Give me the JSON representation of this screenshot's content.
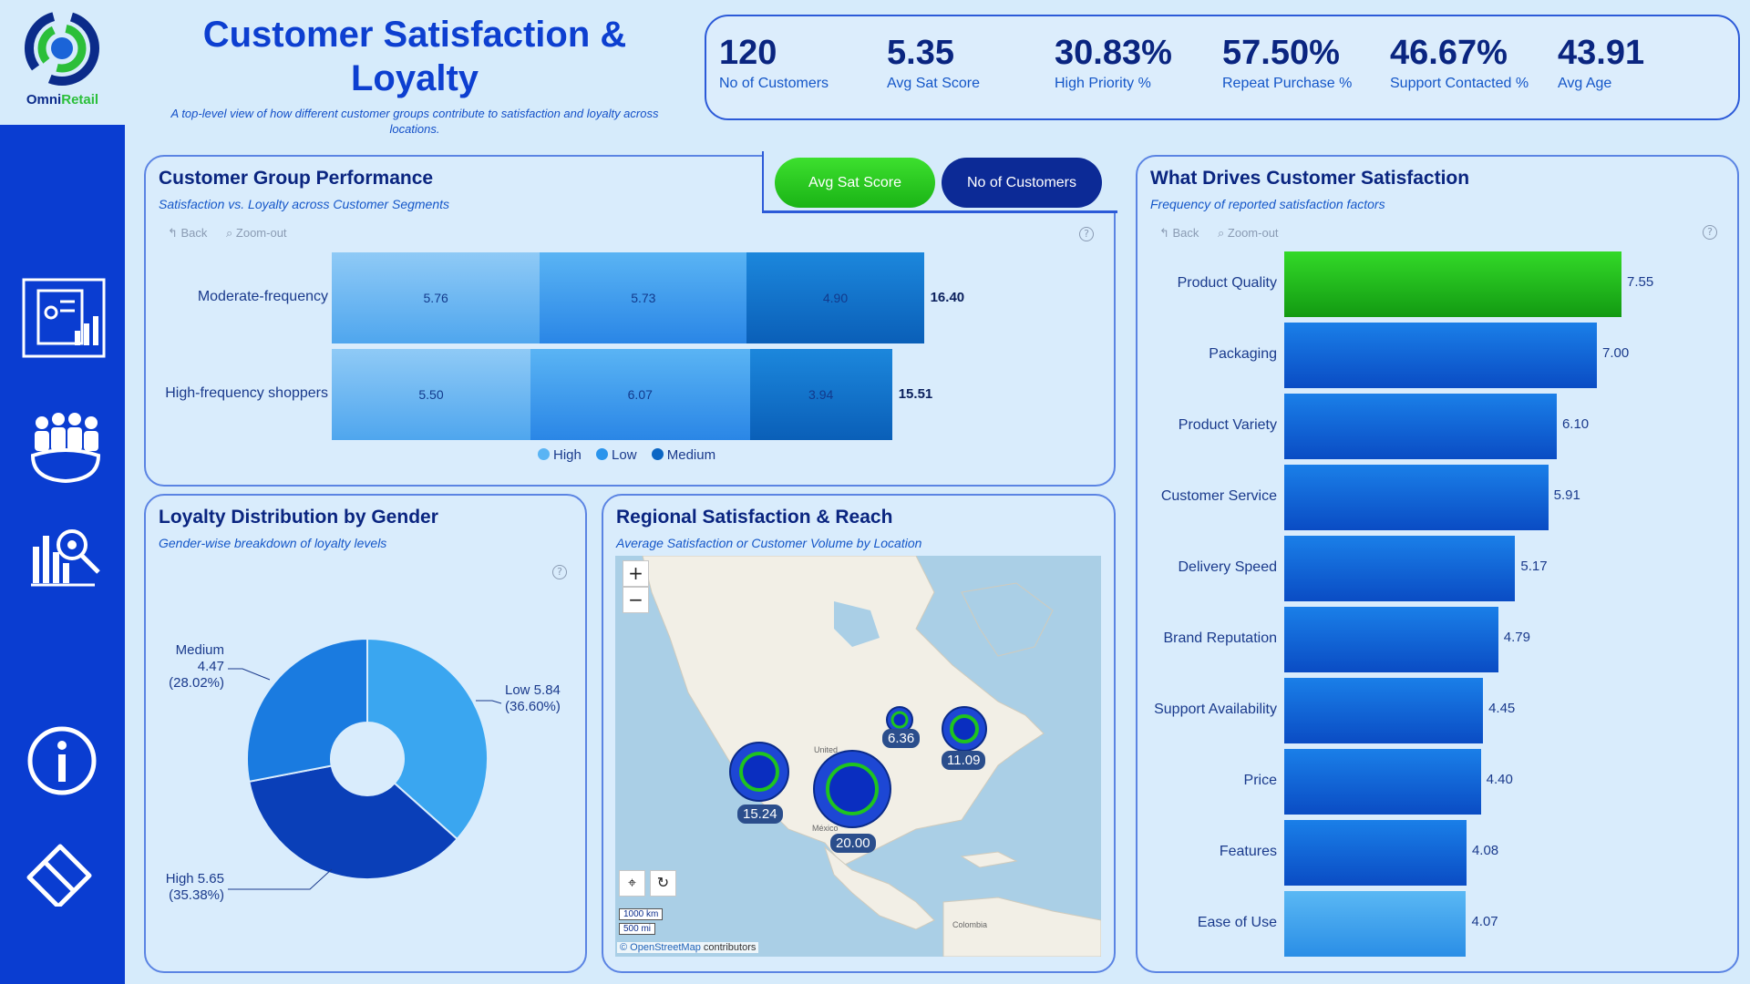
{
  "brand": {
    "name_part1": "Omni",
    "name_part2": "Retail"
  },
  "header": {
    "title": "Customer Satisfaction & Loyalty",
    "subtitle": "A top-level view of how different customer groups contribute to satisfaction and loyalty across locations."
  },
  "kpis": [
    {
      "value": "120",
      "label": "No of Customers"
    },
    {
      "value": "5.35",
      "label": "Avg Sat Score"
    },
    {
      "value": "30.83%",
      "label": "High Priority %"
    },
    {
      "value": "57.50%",
      "label": "Repeat Purchase %"
    },
    {
      "value": "46.67%",
      "label": "Support Contacted %"
    },
    {
      "value": "43.91",
      "label": "Avg Age"
    }
  ],
  "nav": [
    "dashboard-icon",
    "customers-icon",
    "analytics-icon",
    "info-icon",
    "eraser-icon"
  ],
  "colors": {
    "accent_green": "#1fc41f",
    "primary_blue": "#0a3dd1",
    "navy": "#0c2a96"
  },
  "group_perf": {
    "title": "Customer Group Performance",
    "subtitle": "Satisfaction vs. Loyalty across Customer Segments",
    "back": "Back",
    "zoom": "Zoom-out",
    "toggle_sat": "Avg Sat Score",
    "toggle_cust": "No of Customers",
    "legend": [
      "High",
      "Low",
      "Medium"
    ]
  },
  "gender": {
    "title": "Loyalty Distribution by Gender",
    "subtitle": "Gender-wise breakdown of loyalty levels",
    "labels": {
      "low": [
        "Low 5.84",
        "(36.60%)"
      ],
      "medium": [
        "Medium",
        "4.47",
        "(28.02%)"
      ],
      "high": [
        "High 5.65",
        "(35.38%)"
      ]
    }
  },
  "region": {
    "title": "Regional Satisfaction & Reach",
    "subtitle": "Average Satisfaction or Customer Volume by Location",
    "zoom_in": "+",
    "zoom_out": "−",
    "scale_km": "1000 km",
    "scale_mi": "500 mi",
    "attribution_link": "© OpenStreetMap",
    "attribution_rest": " contributors",
    "place_united": "United",
    "place_mexico": "México",
    "place_colombia": "Colombia",
    "bubbles": [
      "15.24",
      "20.00",
      "6.36",
      "11.09"
    ]
  },
  "drivers": {
    "title": "What Drives Customer Satisfaction",
    "subtitle": "Frequency of reported satisfaction factors",
    "back": "Back",
    "zoom": "Zoom-out"
  },
  "chart_data": [
    {
      "type": "bar",
      "orientation": "horizontal",
      "stacked": true,
      "title": "Customer Group Performance",
      "categories": [
        "Moderate-frequency",
        "High-frequency shoppers"
      ],
      "series": [
        {
          "name": "High",
          "values": [
            5.76,
            5.5
          ]
        },
        {
          "name": "Low",
          "values": [
            5.73,
            6.07
          ]
        },
        {
          "name": "Medium",
          "values": [
            4.9,
            3.94
          ]
        }
      ],
      "totals": [
        "16.40",
        "15.51"
      ],
      "legend": "bottom-center"
    },
    {
      "type": "pie",
      "donut": true,
      "title": "Loyalty Distribution by Gender",
      "categories": [
        "Low",
        "High",
        "Medium"
      ],
      "values": [
        5.84,
        5.65,
        4.47
      ],
      "percents": [
        "36.60%",
        "35.38%",
        "28.02%"
      ]
    },
    {
      "type": "bar",
      "orientation": "horizontal",
      "title": "What Drives Customer Satisfaction",
      "categories": [
        "Product Quality",
        "Packaging",
        "Product Variety",
        "Customer Service",
        "Delivery Speed",
        "Brand Reputation",
        "Support Availability",
        "Price",
        "Features",
        "Ease of Use"
      ],
      "values": [
        7.55,
        7.0,
        6.1,
        5.91,
        5.17,
        4.79,
        4.45,
        4.4,
        4.08,
        4.07
      ],
      "value_labels": [
        "7.55",
        "7.00",
        "6.10",
        "5.91",
        "5.17",
        "4.79",
        "4.45",
        "4.40",
        "4.08",
        "4.07"
      ],
      "xlim": [
        0,
        7.55
      ]
    }
  ]
}
